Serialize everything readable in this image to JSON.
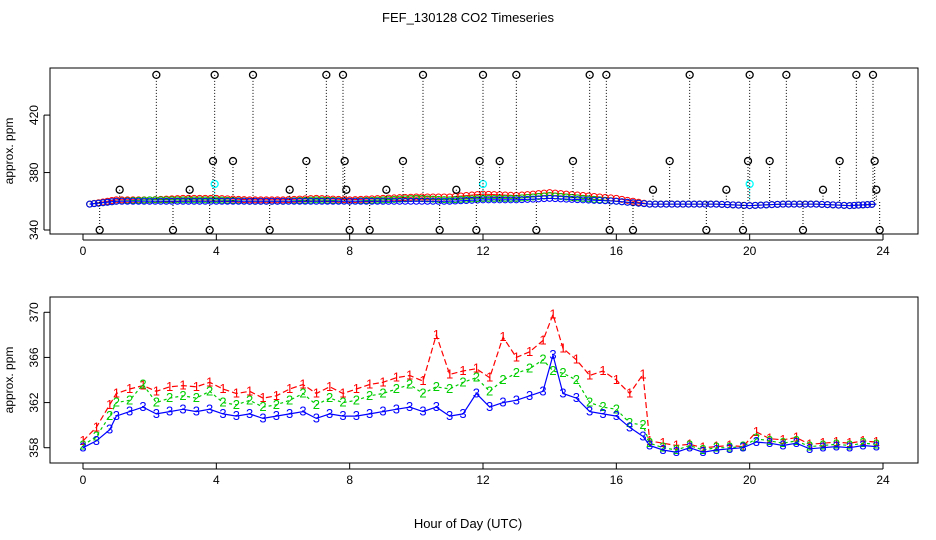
{
  "title": "FEF_130128  CO2 Timeseries",
  "xlabel": "Hour of Day (UTC)",
  "colors": {
    "series1": "#ff0000",
    "series2": "#00cd00",
    "series3": "#0000ff",
    "flagged": "#00ffff",
    "outlier": "#000000",
    "axis": "#000000"
  },
  "chart_data": [
    {
      "type": "scatter",
      "ylabel": "approx. ppm",
      "xlim": [
        0,
        24
      ],
      "ylim": [
        340,
        450
      ],
      "xticks": [
        "0",
        "4",
        "8",
        "12",
        "16",
        "20",
        "24"
      ],
      "yticks": [
        "340",
        "380",
        "420"
      ],
      "series": [
        {
          "name": "",
          "color": "#ff0000",
          "points": [
            [
              0.2,
              358
            ],
            [
              1,
              361
            ],
            [
              2,
              361
            ],
            [
              3,
              362
            ],
            [
              4,
              362
            ],
            [
              5,
              361
            ],
            [
              6,
              361
            ],
            [
              7,
              362
            ],
            [
              8,
              361
            ],
            [
              9,
              362
            ],
            [
              10,
              363
            ],
            [
              11,
              363
            ],
            [
              12,
              365
            ],
            [
              13,
              364
            ],
            [
              14,
              366
            ],
            [
              15,
              364
            ],
            [
              16,
              362
            ],
            [
              17,
              358
            ],
            [
              18,
              358
            ],
            [
              19,
              358
            ],
            [
              20,
              357
            ],
            [
              21,
              358
            ],
            [
              22,
              358
            ],
            [
              23,
              357
            ],
            [
              23.8,
              358
            ]
          ]
        },
        {
          "name": "",
          "color": "#00cd00",
          "points": [
            [
              0.2,
              358
            ],
            [
              1,
              360
            ],
            [
              2,
              361
            ],
            [
              3,
              361
            ],
            [
              4,
              361
            ],
            [
              5,
              360
            ],
            [
              6,
              360
            ],
            [
              7,
              361
            ],
            [
              8,
              360
            ],
            [
              9,
              361
            ],
            [
              10,
              362
            ],
            [
              11,
              361
            ],
            [
              12,
              362
            ],
            [
              13,
              362
            ],
            [
              14,
              364
            ],
            [
              15,
              362
            ],
            [
              16,
              360
            ],
            [
              17,
              358
            ],
            [
              18,
              358
            ],
            [
              19,
              358
            ],
            [
              20,
              357
            ],
            [
              21,
              358
            ],
            [
              22,
              358
            ],
            [
              23,
              357
            ],
            [
              23.8,
              358
            ]
          ]
        },
        {
          "name": "",
          "color": "#0000ff",
          "points": [
            [
              0.2,
              358
            ],
            [
              1,
              360
            ],
            [
              2,
              360
            ],
            [
              3,
              360
            ],
            [
              4,
              360
            ],
            [
              5,
              360
            ],
            [
              6,
              360
            ],
            [
              7,
              360
            ],
            [
              8,
              360
            ],
            [
              9,
              360
            ],
            [
              10,
              360
            ],
            [
              11,
              360
            ],
            [
              12,
              361
            ],
            [
              13,
              361
            ],
            [
              14,
              362
            ],
            [
              15,
              361
            ],
            [
              16,
              360
            ],
            [
              17,
              358
            ],
            [
              18,
              358
            ],
            [
              19,
              358
            ],
            [
              20,
              357
            ],
            [
              21,
              358
            ],
            [
              22,
              358
            ],
            [
              23,
              357
            ],
            [
              23.8,
              358
            ]
          ]
        }
      ],
      "flagged_points": [
        [
          3.95,
          372
        ],
        [
          12,
          372
        ],
        [
          20,
          372
        ]
      ],
      "outlier_points": [
        [
          0.5,
          340
        ],
        [
          1.1,
          368
        ],
        [
          2.2,
          448
        ],
        [
          2.7,
          340
        ],
        [
          3.2,
          368
        ],
        [
          3.8,
          340
        ],
        [
          3.9,
          388
        ],
        [
          3.95,
          448
        ],
        [
          4.5,
          388
        ],
        [
          5.1,
          448
        ],
        [
          5.6,
          340
        ],
        [
          6.2,
          368
        ],
        [
          6.7,
          388
        ],
        [
          7.3,
          448
        ],
        [
          7.8,
          448
        ],
        [
          7.85,
          388
        ],
        [
          7.9,
          368
        ],
        [
          8,
          340
        ],
        [
          8.6,
          340
        ],
        [
          9.1,
          368
        ],
        [
          9.6,
          388
        ],
        [
          10.2,
          448
        ],
        [
          10.7,
          340
        ],
        [
          11.2,
          368
        ],
        [
          11.8,
          340
        ],
        [
          11.9,
          388
        ],
        [
          12,
          448
        ],
        [
          12.5,
          388
        ],
        [
          13,
          448
        ],
        [
          13.6,
          340
        ],
        [
          14.7,
          388
        ],
        [
          15.2,
          448
        ],
        [
          15.7,
          448
        ],
        [
          15.8,
          340
        ],
        [
          16.5,
          340
        ],
        [
          17.1,
          368
        ],
        [
          17.6,
          388
        ],
        [
          18.2,
          448
        ],
        [
          18.7,
          340
        ],
        [
          19.3,
          368
        ],
        [
          19.8,
          340
        ],
        [
          19.95,
          388
        ],
        [
          20,
          448
        ],
        [
          20.6,
          388
        ],
        [
          21.1,
          448
        ],
        [
          21.6,
          340
        ],
        [
          22.2,
          368
        ],
        [
          22.7,
          388
        ],
        [
          23.2,
          448
        ],
        [
          23.7,
          448
        ],
        [
          23.75,
          388
        ],
        [
          23.8,
          368
        ],
        [
          23.9,
          340
        ]
      ]
    },
    {
      "type": "line",
      "ylabel": "approx. ppm",
      "xlim": [
        0,
        24
      ],
      "ylim": [
        357,
        371
      ],
      "xticks": [
        "0",
        "4",
        "8",
        "12",
        "16",
        "20",
        "24"
      ],
      "yticks": [
        "358",
        "362",
        "366",
        "370"
      ],
      "series": [
        {
          "name": "",
          "marker": "1",
          "color": "#ff0000",
          "x": [
            0,
            0.4,
            0.8,
            1,
            1.4,
            1.8,
            2.2,
            2.6,
            3,
            3.4,
            3.8,
            4.2,
            4.6,
            5,
            5.4,
            5.8,
            6.2,
            6.6,
            7,
            7.4,
            7.8,
            8.2,
            8.6,
            9,
            9.4,
            9.8,
            10.2,
            10.6,
            11,
            11.4,
            11.8,
            12.2,
            12.6,
            13,
            13.4,
            13.8,
            14.1,
            14.4,
            14.8,
            15.2,
            15.6,
            16,
            16.4,
            16.8,
            17,
            17.4,
            17.8,
            18.2,
            18.6,
            19,
            19.4,
            19.8,
            20.2,
            20.6,
            21,
            21.4,
            21.8,
            22.2,
            22.6,
            23,
            23.4,
            23.8
          ],
          "y": [
            358.6,
            359.8,
            361.8,
            362.8,
            363.2,
            363.5,
            363.0,
            363.4,
            363.5,
            363.4,
            363.8,
            363.2,
            362.8,
            363.0,
            362.4,
            362.6,
            363.2,
            363.6,
            362.8,
            363.4,
            362.8,
            363.2,
            363.6,
            363.8,
            364.2,
            364.4,
            363.9,
            368.0,
            364.5,
            364.8,
            365.0,
            364.2,
            367.8,
            366.0,
            366.5,
            367.5,
            369.8,
            366.8,
            365.8,
            364.4,
            364.8,
            364.0,
            362.8,
            364.5,
            358.6,
            358.4,
            358.2,
            358.3,
            358.0,
            358.1,
            358.2,
            358.1,
            359.4,
            358.8,
            358.7,
            358.9,
            358.3,
            358.4,
            358.5,
            358.4,
            358.6,
            358.5
          ]
        },
        {
          "name": "",
          "marker": "2",
          "color": "#00cd00",
          "x": [
            0,
            0.4,
            0.8,
            1,
            1.4,
            1.8,
            2.2,
            2.6,
            3,
            3.4,
            3.8,
            4.2,
            4.6,
            5,
            5.4,
            5.8,
            6.2,
            6.6,
            7,
            7.4,
            7.8,
            8.2,
            8.6,
            9,
            9.4,
            9.8,
            10.2,
            10.6,
            11,
            11.4,
            11.8,
            12.2,
            12.6,
            13,
            13.4,
            13.8,
            14.1,
            14.4,
            14.8,
            15.2,
            15.6,
            16,
            16.4,
            16.8,
            17,
            17.4,
            17.8,
            18.2,
            18.6,
            19,
            19.4,
            19.8,
            20.2,
            20.6,
            21,
            21.4,
            21.8,
            22.2,
            22.6,
            23,
            23.4,
            23.8
          ],
          "y": [
            358.2,
            359.0,
            360.8,
            362.0,
            362.2,
            363.6,
            362.0,
            362.4,
            362.6,
            362.4,
            363.0,
            362.0,
            361.8,
            362.2,
            361.6,
            361.8,
            362.2,
            362.8,
            361.8,
            362.4,
            362.0,
            362.2,
            362.6,
            362.8,
            363.2,
            363.6,
            362.8,
            363.4,
            363.2,
            363.8,
            364.2,
            363.0,
            364.0,
            364.6,
            365.0,
            365.8,
            364.8,
            364.6,
            364.0,
            362.0,
            361.6,
            361.4,
            360.2,
            360.0,
            358.4,
            358.0,
            357.8,
            358.2,
            357.8,
            358.0,
            358.0,
            358.1,
            358.8,
            358.6,
            358.4,
            358.6,
            358.1,
            358.2,
            358.3,
            358.2,
            358.4,
            358.3
          ]
        },
        {
          "name": "",
          "marker": "3",
          "color": "#0000ff",
          "x": [
            0,
            0.4,
            0.8,
            1,
            1.4,
            1.8,
            2.2,
            2.6,
            3,
            3.4,
            3.8,
            4.2,
            4.6,
            5,
            5.4,
            5.8,
            6.2,
            6.6,
            7,
            7.4,
            7.8,
            8.2,
            8.6,
            9,
            9.4,
            9.8,
            10.2,
            10.6,
            11,
            11.4,
            11.8,
            12.2,
            12.6,
            13,
            13.4,
            13.8,
            14.1,
            14.4,
            14.8,
            15.2,
            15.6,
            16,
            16.4,
            16.8,
            17,
            17.4,
            17.8,
            18.2,
            18.6,
            19,
            19.4,
            19.8,
            20.2,
            20.6,
            21,
            21.4,
            21.8,
            22.2,
            22.6,
            23,
            23.4,
            23.8
          ],
          "y": [
            358.0,
            358.6,
            359.6,
            360.8,
            361.2,
            361.6,
            361.0,
            361.2,
            361.4,
            361.2,
            361.4,
            361.0,
            360.8,
            361.0,
            360.6,
            360.8,
            361.0,
            361.2,
            360.6,
            361.0,
            360.8,
            360.8,
            361.0,
            361.2,
            361.4,
            361.6,
            361.2,
            361.6,
            360.8,
            361.0,
            362.8,
            361.6,
            362.0,
            362.2,
            362.6,
            363.0,
            366.2,
            362.8,
            362.4,
            361.2,
            361.0,
            360.8,
            359.8,
            359.0,
            358.2,
            357.8,
            357.6,
            358.0,
            357.6,
            357.8,
            357.9,
            358.0,
            358.5,
            358.4,
            358.2,
            358.4,
            357.9,
            358.0,
            358.1,
            358.0,
            358.2,
            358.1
          ]
        }
      ]
    }
  ]
}
